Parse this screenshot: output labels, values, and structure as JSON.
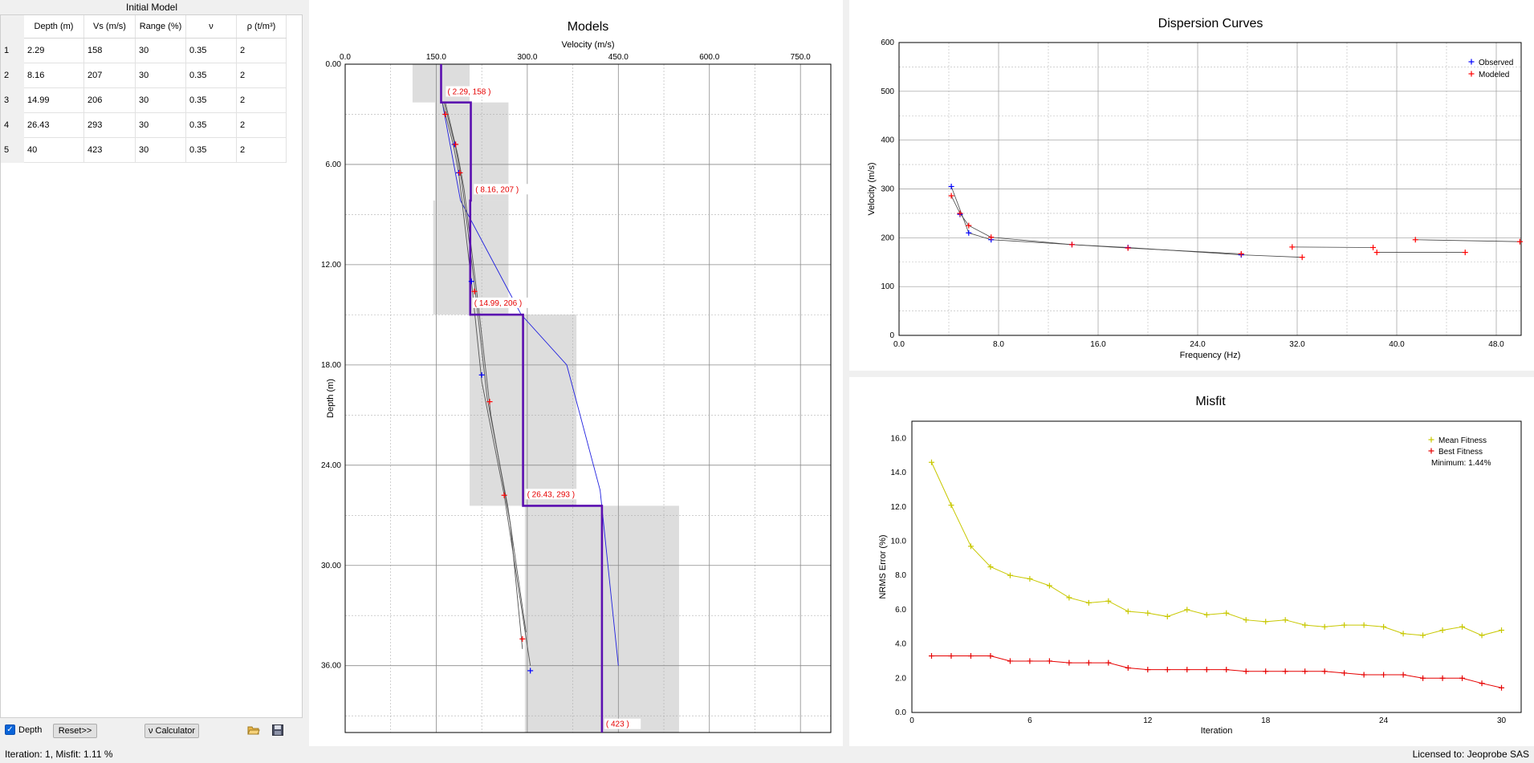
{
  "left_panel": {
    "title": "Initial Model",
    "columns": [
      "Depth (m)",
      "Vs (m/s)",
      "Range (%)",
      "ν",
      "ρ (t/m³)"
    ],
    "rows": [
      {
        "index": "1",
        "depth": "2.29",
        "vs": "158",
        "range": "30",
        "nu": "0.35",
        "rho": "2"
      },
      {
        "index": "2",
        "depth": "8.16",
        "vs": "207",
        "range": "30",
        "nu": "0.35",
        "rho": "2"
      },
      {
        "index": "3",
        "depth": "14.99",
        "vs": "206",
        "range": "30",
        "nu": "0.35",
        "rho": "2"
      },
      {
        "index": "4",
        "depth": "26.43",
        "vs": "293",
        "range": "30",
        "nu": "0.35",
        "rho": "2"
      },
      {
        "index": "5",
        "depth": "40",
        "vs": "423",
        "range": "30",
        "nu": "0.35",
        "rho": "2"
      }
    ],
    "depth_checkbox_label": "Depth",
    "depth_checked": true,
    "reset_button": "Reset>>",
    "calculator_button": "ν Calculator",
    "open_icon": "folder-open-icon",
    "save_icon": "floppy-disk-icon"
  },
  "status": {
    "left": "Iteration: 1, Misfit: 1.11 %",
    "right": "Licensed to: Jeoprobe SAS"
  },
  "colors": {
    "observed": "#0000ff",
    "modeled": "#ff0000",
    "best_model": "#5b0fb0",
    "mean_fitness": "#c8c800",
    "best_fitness": "#e60000",
    "layer_label": "#e60000"
  },
  "chart_data": [
    {
      "id": "models",
      "type": "line",
      "title": "Models",
      "xlabel": "Velocity (m/s)",
      "ylabel": "Depth (m)",
      "xlim": [
        0,
        800
      ],
      "ylim": [
        0,
        40
      ],
      "y_inverted": true,
      "x_axis_position": "top",
      "xticks": [
        "0.0",
        "150.0",
        "300.0",
        "450.0",
        "600.0",
        "750.0"
      ],
      "yticks": [
        "0.00",
        "6.00",
        "12.00",
        "18.00",
        "24.00",
        "30.00",
        "36.00"
      ],
      "range_boxes": [
        {
          "x0": 111,
          "x1": 205,
          "y0": 0,
          "y1": 2.29
        },
        {
          "x0": 148,
          "x1": 269,
          "y0": 2.29,
          "y1": 8.16
        },
        {
          "x0": 145,
          "x1": 269,
          "y0": 8.16,
          "y1": 14.99
        },
        {
          "x0": 205,
          "x1": 381,
          "y0": 14.99,
          "y1": 26.43
        },
        {
          "x0": 296,
          "x1": 550,
          "y0": 26.43,
          "y1": 40
        }
      ],
      "best_model": {
        "name": "Best Model",
        "layers": [
          {
            "depth_top": 0,
            "depth_bottom": 2.29,
            "vs": 158
          },
          {
            "depth_top": 2.29,
            "depth_bottom": 8.16,
            "vs": 207
          },
          {
            "depth_top": 8.16,
            "depth_bottom": 14.99,
            "vs": 206
          },
          {
            "depth_top": 14.99,
            "depth_bottom": 26.43,
            "vs": 293
          },
          {
            "depth_top": 26.43,
            "depth_bottom": 40,
            "vs": 423
          }
        ],
        "labels": [
          "( 2.29, 158 )",
          "( 8.16, 207 )",
          "( 14.99, 206 )",
          "( 26.43, 293 )",
          "( 423 )"
        ]
      },
      "gradient_models": [
        {
          "name": "observed-gradient",
          "color": "blue",
          "points": [
            [
              160,
              2.29
            ],
            [
              190,
              8.16
            ],
            [
              290,
              14.99
            ],
            [
              365,
              18
            ],
            [
              420,
              25.5
            ],
            [
              450,
              36
            ]
          ]
        },
        {
          "name": "model-a",
          "color": "gray",
          "points": [
            [
              160,
              2.29
            ],
            [
              178,
              4.8
            ],
            [
              187,
              6.5
            ],
            [
              208,
              13
            ],
            [
              225,
              19
            ],
            [
              262,
              25.8
            ],
            [
              305,
              36
            ]
          ]
        },
        {
          "name": "model-b",
          "color": "gray",
          "points": [
            [
              163,
              2.29
            ],
            [
              182,
              5
            ],
            [
              192,
              7
            ],
            [
              214,
              13.5
            ],
            [
              234,
              20
            ],
            [
              268,
              26.5
            ],
            [
              298,
              34
            ]
          ]
        },
        {
          "name": "model-c",
          "color": "gray",
          "points": [
            [
              165,
              2.29
            ],
            [
              186,
              5.5
            ],
            [
              196,
              7.5
            ],
            [
              218,
              14
            ],
            [
              240,
              21
            ],
            [
              272,
              27.5
            ],
            [
              292,
              35
            ]
          ]
        }
      ],
      "markers": [
        {
          "symbol": "+",
          "color": "red",
          "x": 165,
          "y": 3.0
        },
        {
          "symbol": "+",
          "color": "blue",
          "x": 180,
          "y": 4.8
        },
        {
          "symbol": "+",
          "color": "red",
          "x": 182,
          "y": 4.8
        },
        {
          "symbol": "+",
          "color": "blue",
          "x": 187,
          "y": 6.5
        },
        {
          "symbol": "+",
          "color": "red",
          "x": 189,
          "y": 6.5
        },
        {
          "symbol": "+",
          "color": "blue",
          "x": 208,
          "y": 13
        },
        {
          "symbol": "+",
          "color": "red",
          "x": 213,
          "y": 13.6
        },
        {
          "symbol": "+",
          "color": "blue",
          "x": 225,
          "y": 18.6
        },
        {
          "symbol": "+",
          "color": "red",
          "x": 238,
          "y": 20.2
        },
        {
          "symbol": "+",
          "color": "red",
          "x": 262,
          "y": 25.8
        },
        {
          "symbol": "+",
          "color": "red",
          "x": 292,
          "y": 34.4
        },
        {
          "symbol": "+",
          "color": "blue",
          "x": 305,
          "y": 36.3
        }
      ]
    },
    {
      "id": "dispersion",
      "type": "scatter",
      "title": "Dispersion Curves",
      "xlabel": "Frequency (Hz)",
      "ylabel": "Velocity (m/s)",
      "xlim": [
        0,
        50
      ],
      "ylim": [
        0,
        600
      ],
      "xticks": [
        "0.0",
        "8.0",
        "16.0",
        "24.0",
        "32.0",
        "40.0",
        "48.0"
      ],
      "yticks": [
        "0",
        "100",
        "200",
        "300",
        "400",
        "500",
        "600"
      ],
      "legend_position": "top-right",
      "series": [
        {
          "name": "Observed",
          "color": "blue",
          "points": [
            [
              4.2,
              305
            ],
            [
              4.9,
              248
            ],
            [
              5.6,
              210
            ],
            [
              7.4,
              196
            ],
            [
              13.9,
              186
            ],
            [
              18.4,
              180
            ],
            [
              27.5,
              165
            ]
          ]
        },
        {
          "name": "Modeled",
          "color": "red",
          "points": [
            [
              4.2,
              286
            ],
            [
              4.9,
              250
            ],
            [
              5.6,
              225
            ],
            [
              7.4,
              201
            ],
            [
              13.9,
              186
            ],
            [
              18.4,
              179
            ],
            [
              27.5,
              167
            ],
            [
              32.4,
              160
            ],
            [
              31.6,
              181
            ],
            [
              38.1,
              180
            ],
            [
              38.4,
              170
            ],
            [
              45.5,
              170
            ],
            [
              41.5,
              196
            ],
            [
              49.9,
              192
            ]
          ]
        }
      ],
      "lines": [
        [
          [
            4.2,
            305
          ],
          [
            5.6,
            210
          ],
          [
            7.4,
            196
          ],
          [
            13.9,
            186
          ],
          [
            18.4,
            180
          ],
          [
            27.5,
            165
          ],
          [
            32.4,
            160
          ]
        ],
        [
          [
            4.2,
            286
          ],
          [
            4.9,
            250
          ],
          [
            5.6,
            225
          ],
          [
            7.4,
            201
          ],
          [
            13.9,
            186
          ],
          [
            18.4,
            179
          ],
          [
            27.5,
            167
          ]
        ],
        [
          [
            31.6,
            181
          ],
          [
            38.1,
            180
          ]
        ],
        [
          [
            38.4,
            170
          ],
          [
            45.5,
            170
          ]
        ],
        [
          [
            41.5,
            196
          ],
          [
            49.9,
            192
          ]
        ]
      ]
    },
    {
      "id": "misfit",
      "type": "line",
      "title": "Misfit",
      "xlabel": "Iteration",
      "ylabel": "NRMS Error (%)",
      "xlim": [
        0,
        31
      ],
      "ylim": [
        0,
        17
      ],
      "xticks": [
        "0",
        "6",
        "12",
        "18",
        "24",
        "30"
      ],
      "yticks": [
        "0.0",
        "2.0",
        "4.0",
        "6.0",
        "8.0",
        "10.0",
        "12.0",
        "14.0",
        "16.0"
      ],
      "legend_position": "top-right",
      "annotation": "Minimum: 1.44%",
      "series": [
        {
          "name": "Mean Fitness",
          "color": "yellow",
          "x": [
            1,
            2,
            3,
            4,
            5,
            6,
            7,
            8,
            9,
            10,
            11,
            12,
            13,
            14,
            15,
            16,
            17,
            18,
            19,
            20,
            21,
            22,
            23,
            24,
            25,
            26,
            27,
            28,
            29,
            30
          ],
          "values": [
            14.6,
            12.1,
            9.7,
            8.5,
            8.0,
            7.8,
            7.4,
            6.7,
            6.4,
            6.5,
            5.9,
            5.8,
            5.6,
            6.0,
            5.7,
            5.8,
            5.4,
            5.3,
            5.4,
            5.1,
            5.0,
            5.1,
            5.1,
            5.0,
            4.6,
            4.5,
            4.8,
            5.0,
            4.5,
            4.8
          ]
        },
        {
          "name": "Best Fitness",
          "color": "red",
          "x": [
            1,
            2,
            3,
            4,
            5,
            6,
            7,
            8,
            9,
            10,
            11,
            12,
            13,
            14,
            15,
            16,
            17,
            18,
            19,
            20,
            21,
            22,
            23,
            24,
            25,
            26,
            27,
            28,
            29,
            30
          ],
          "values": [
            3.3,
            3.3,
            3.3,
            3.3,
            3.0,
            3.0,
            3.0,
            2.9,
            2.9,
            2.9,
            2.6,
            2.5,
            2.5,
            2.5,
            2.5,
            2.5,
            2.4,
            2.4,
            2.4,
            2.4,
            2.4,
            2.3,
            2.2,
            2.2,
            2.2,
            2.0,
            2.0,
            2.0,
            1.7,
            1.44
          ]
        }
      ]
    }
  ]
}
